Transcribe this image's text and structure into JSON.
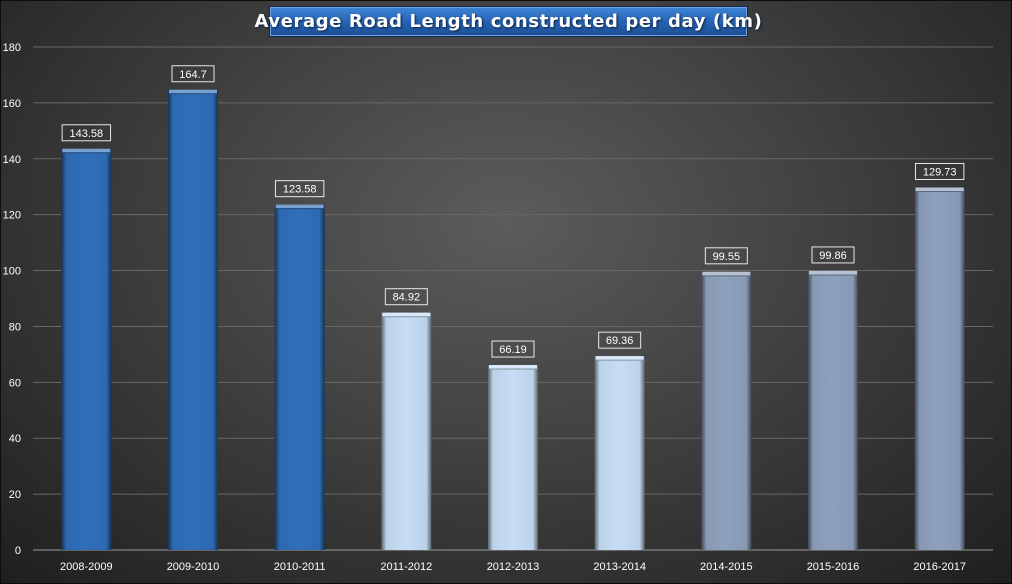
{
  "chart_data": {
    "type": "bar",
    "title": "Average Road Length constructed per day (km)",
    "xlabel": "",
    "ylabel": "",
    "categories": [
      "2008-2009",
      "2009-2010",
      "2010-2011",
      "2011-2012",
      "2012-2013",
      "2013-2014",
      "2014-2015",
      "2015-2016",
      "2016-2017"
    ],
    "values": [
      143.58,
      164.7,
      123.58,
      84.92,
      66.19,
      69.36,
      99.55,
      99.86,
      129.73
    ],
    "data_labels": [
      "143.58",
      "164.7",
      "123.58",
      "84.92",
      "66.19",
      "69.36",
      "99.55",
      "99.86",
      "129.73"
    ],
    "ylim": [
      0,
      180
    ],
    "yticks": [
      0,
      20,
      40,
      60,
      80,
      100,
      120,
      140,
      160,
      180
    ],
    "bar_colors": [
      "#2f6fba",
      "#2f6fba",
      "#2f6fba",
      "#c6ddf5",
      "#c6ddf5",
      "#c6ddf5",
      "#8ea1bc",
      "#8ea1bc",
      "#8ea1bc"
    ],
    "grid": true,
    "legend": "none"
  }
}
